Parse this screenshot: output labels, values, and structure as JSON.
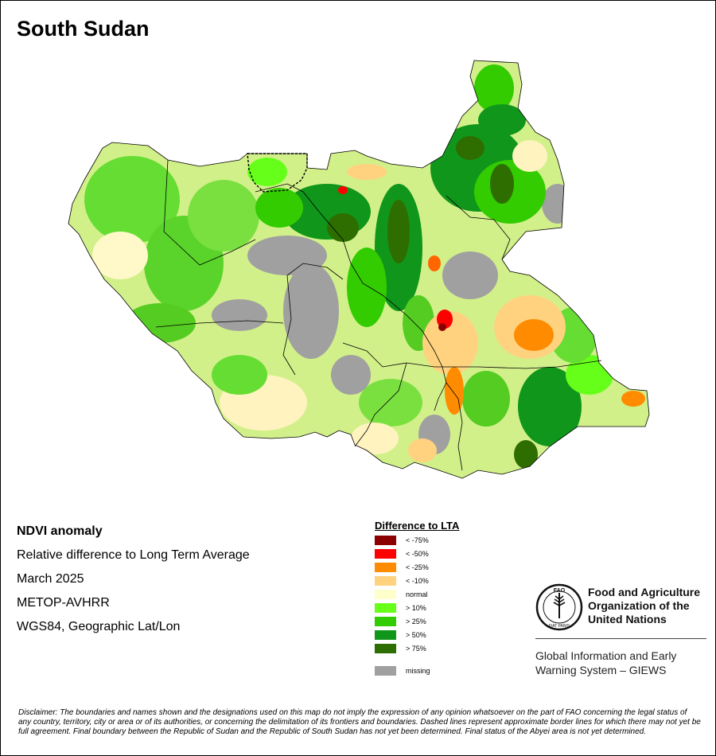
{
  "map": {
    "title": "South Sudan",
    "info_lines": [
      "NDVI anomaly",
      "Relative difference to Long Term Average",
      "March 2025",
      "METOP-AVHRR",
      "WGS84, Geographic Lat/Lon"
    ]
  },
  "legend": {
    "title": "Difference to LTA",
    "items": [
      {
        "label": "< -75%",
        "color": "#8b0000"
      },
      {
        "label": "< -50%",
        "color": "#ff0000"
      },
      {
        "label": "< -25%",
        "color": "#ff8c00"
      },
      {
        "label": "< -10%",
        "color": "#ffd27f"
      },
      {
        "label": "normal",
        "color": "#ffffcc"
      },
      {
        "label": "> 10%",
        "color": "#66ff1a"
      },
      {
        "label": "> 25%",
        "color": "#33cc00"
      },
      {
        "label": "> 50%",
        "color": "#10961a"
      },
      {
        "label": "> 75%",
        "color": "#2e6e00"
      },
      {
        "label": "missing",
        "color": "#a0a0a0"
      }
    ]
  },
  "logo": {
    "org_line1": "Food and Agriculture",
    "org_line2": "Organization of the",
    "org_line3": "United Nations",
    "emblem_letters": "FAO",
    "emblem_motto": "FIAT PANIS",
    "system_line1": "Global Information and Early",
    "system_line2": "Warning System – GIEWS"
  },
  "disclaimer": "Disclaimer: The boundaries and names shown and the designations used on this map do not imply the expression of any opinion whatsoever on the part of FAO concerning the legal status of any country, territory, city or area or of its authorities, or concerning the delimitation of its frontiers and boundaries. Dashed lines represent approximate border lines for which there may not yet be full agreement.  Final boundary between the Republic of Sudan and the Republic of South Sudan has not yet been determined. Final status of the Abyei area is not yet determined."
}
